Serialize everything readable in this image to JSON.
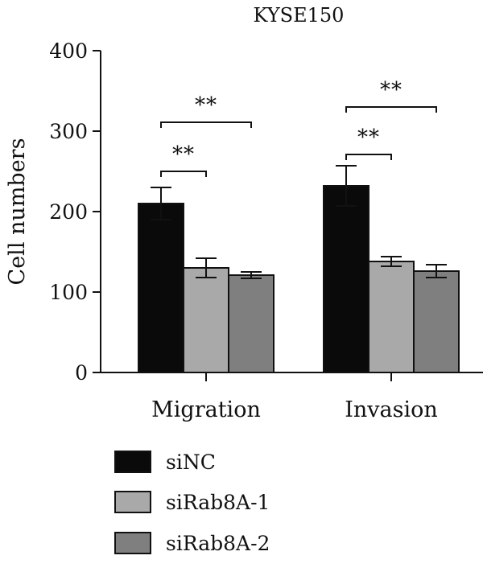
{
  "chart_data": {
    "type": "bar",
    "title": "KYSE150",
    "xlabel": "",
    "ylabel": "Cell numbers",
    "ylim": [
      0,
      400
    ],
    "yticks": [
      0,
      100,
      200,
      300,
      400
    ],
    "categories": [
      "Migration",
      "Invasion"
    ],
    "series": [
      {
        "name": "siNC",
        "values": [
          210,
          232
        ],
        "errors": [
          20,
          25
        ],
        "color": "#0a0a0a"
      },
      {
        "name": "siRab8A-1",
        "values": [
          130,
          138
        ],
        "errors": [
          12,
          6
        ],
        "color": "#a9a9a9"
      },
      {
        "name": "siRab8A-2",
        "values": [
          121,
          126
        ],
        "errors": [
          4,
          8
        ],
        "color": "#7f7f7f"
      }
    ],
    "significance": [
      {
        "category": "Migration",
        "from": 0,
        "to": 1,
        "label": "**"
      },
      {
        "category": "Migration",
        "from": 0,
        "to": 2,
        "label": "**"
      },
      {
        "category": "Invasion",
        "from": 0,
        "to": 1,
        "label": "**"
      },
      {
        "category": "Invasion",
        "from": 0,
        "to": 2,
        "label": "**"
      }
    ],
    "legend_position": "bottom-left",
    "grid": false
  }
}
